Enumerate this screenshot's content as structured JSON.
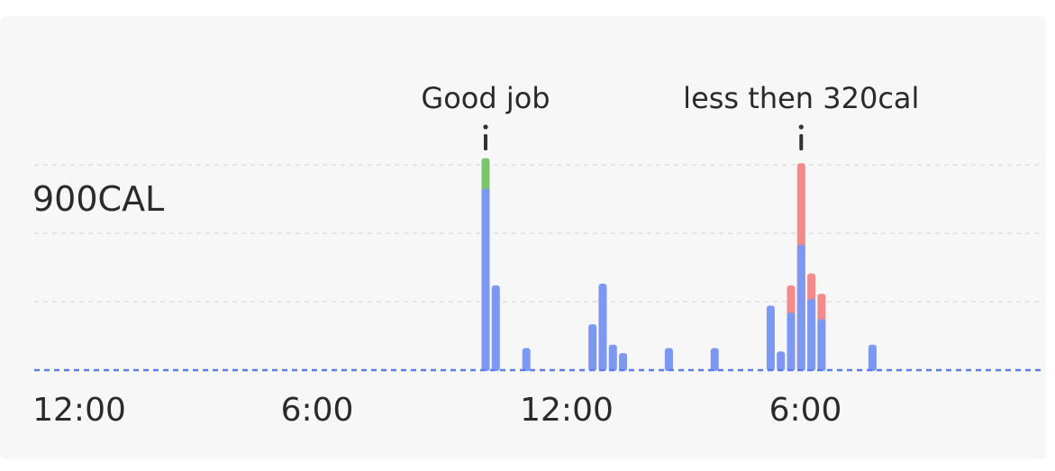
{
  "chart_data": {
    "type": "bar",
    "y_label": "900CAL",
    "x_tick_labels": [
      "12:00",
      "6:00",
      "12:00",
      "6:00"
    ],
    "ylim": [
      0,
      1200
    ],
    "grid": "dashed horizontal",
    "colors": {
      "intake": "#7d98f3",
      "over_goal": "#f48a8a",
      "on_goal": "#7cc46b",
      "baseline": "#5b7ff0",
      "grid": "#dddddd"
    },
    "annotations": [
      {
        "text": "Good job",
        "bar_index": 0
      },
      {
        "text": "less then 320cal",
        "bar_index": 16
      }
    ],
    "bars": [
      {
        "x": 0.0,
        "value": 1070,
        "extra": 180,
        "extra_type": "on_goal"
      },
      {
        "x": 0.5,
        "value": 500
      },
      {
        "x": 2.0,
        "value": 130
      },
      {
        "x": 5.25,
        "value": 270
      },
      {
        "x": 5.75,
        "value": 510
      },
      {
        "x": 6.25,
        "value": 150
      },
      {
        "x": 6.75,
        "value": 100
      },
      {
        "x": 9.0,
        "value": 130
      },
      {
        "x": 11.25,
        "value": 130
      },
      {
        "x": 14.0,
        "value": 380
      },
      {
        "x": 14.5,
        "value": 110
      },
      {
        "x": 15.0,
        "value": 340,
        "extra": 160,
        "extra_type": "over_goal"
      },
      {
        "x": 15.5,
        "value": 740,
        "extra": 480,
        "extra_type": "over_goal"
      },
      {
        "x": 16.0,
        "value": 420,
        "extra": 150,
        "extra_type": "over_goal"
      },
      {
        "x": 16.5,
        "value": 300,
        "extra": 150,
        "extra_type": "over_goal"
      },
      {
        "x": 19.0,
        "value": 150
      }
    ]
  }
}
